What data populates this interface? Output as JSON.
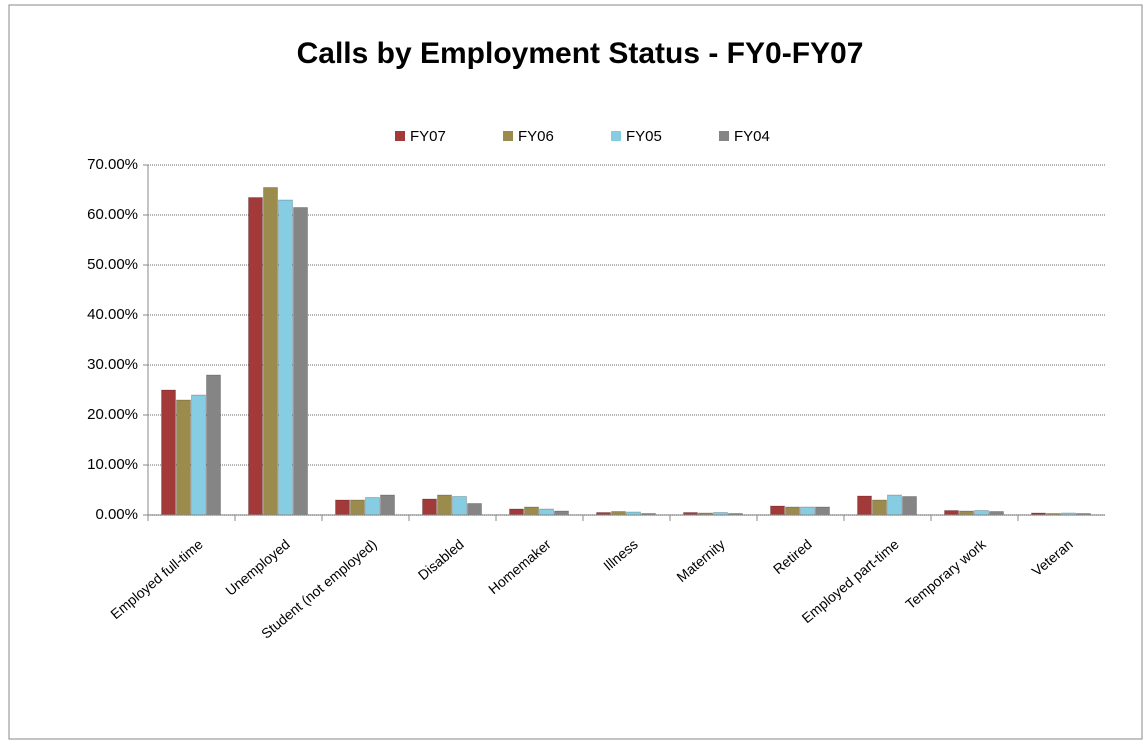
{
  "chart_data": {
    "type": "bar",
    "title": "Calls by Employment Status - FY0-FY07",
    "categories": [
      "Employed full-time",
      "Unemployed",
      "Student (not employed)",
      "Disabled",
      "Homemaker",
      "Illness",
      "Maternity",
      "Retired",
      "Employed part-time",
      "Temporary work",
      "Veteran"
    ],
    "series": [
      {
        "name": "FY07",
        "color": "#a33a3a",
        "values": [
          25,
          63.5,
          3,
          3.2,
          1.2,
          0.5,
          0.5,
          1.8,
          3.8,
          0.9,
          0.4
        ]
      },
      {
        "name": "FY06",
        "color": "#9b8c4e",
        "values": [
          23,
          65.5,
          3,
          4,
          1.6,
          0.7,
          0.4,
          1.6,
          3,
          0.8,
          0.3
        ]
      },
      {
        "name": "FY05",
        "color": "#86cde3",
        "values": [
          24,
          63,
          3.5,
          3.7,
          1.2,
          0.6,
          0.5,
          1.6,
          4,
          0.9,
          0.4
        ]
      },
      {
        "name": "FY04",
        "color": "#858585",
        "values": [
          28,
          61.5,
          4,
          2.3,
          0.8,
          0.3,
          0.3,
          1.6,
          3.7,
          0.7,
          0.3
        ]
      }
    ],
    "ylim": [
      0,
      70
    ],
    "yticks": [
      {
        "value": 0,
        "label": "0.00%"
      },
      {
        "value": 10,
        "label": "10.00%"
      },
      {
        "value": 20,
        "label": "20.00%"
      },
      {
        "value": 30,
        "label": "30.00%"
      },
      {
        "value": 40,
        "label": "40.00%"
      },
      {
        "value": 50,
        "label": "50.00%"
      },
      {
        "value": 60,
        "label": "60.00%"
      },
      {
        "value": 70,
        "label": "70.00%"
      }
    ],
    "grid": true,
    "legend": "top"
  }
}
